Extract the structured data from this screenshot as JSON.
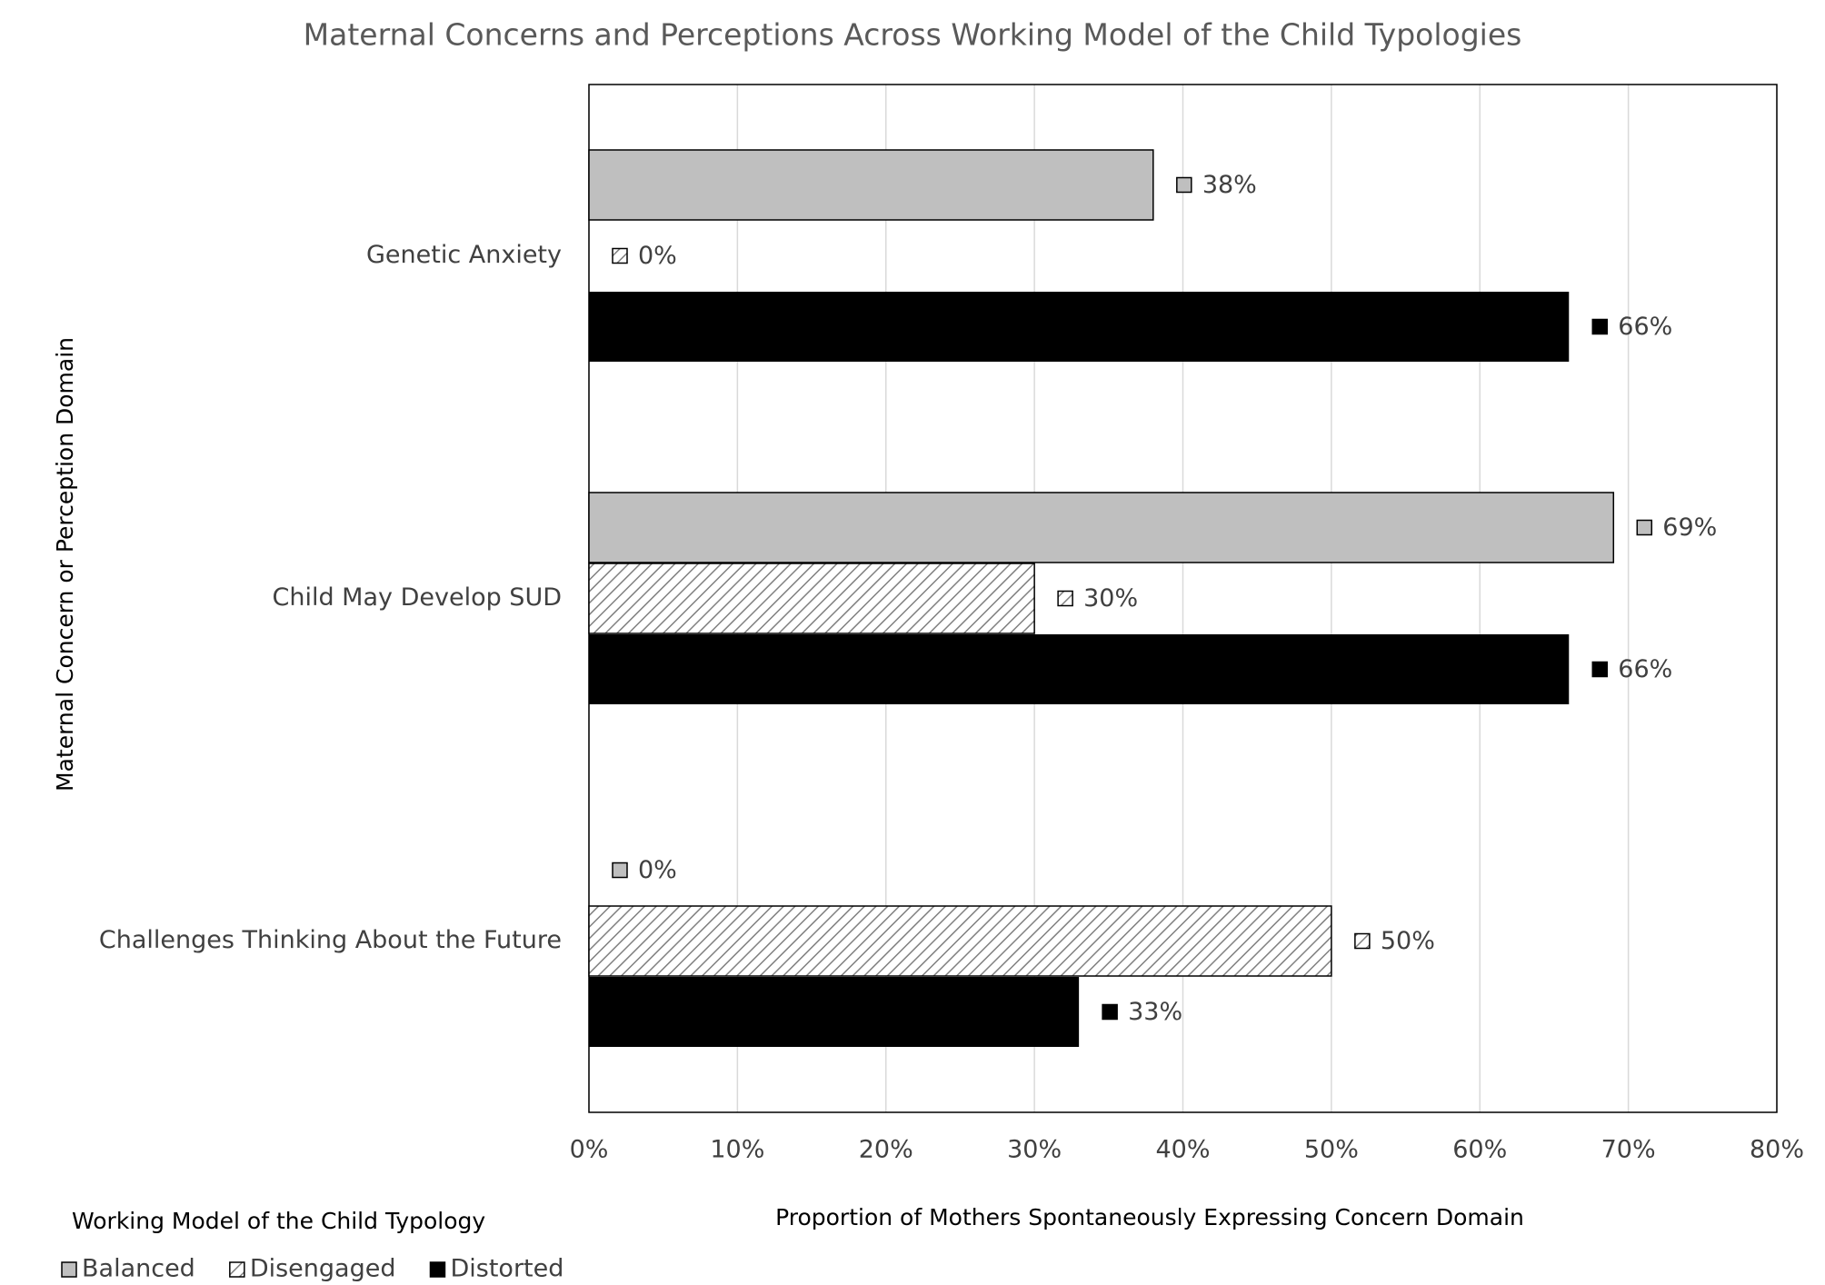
{
  "chart_data": {
    "type": "hbar",
    "title": "Maternal Concerns and Perceptions Across Working Model of the Child Typologies",
    "xlabel": "Proportion of Mothers Spontaneously Expressing Concern Domain",
    "ylabel": "Maternal Concern or Perception Domain",
    "legend_title": "Working Model of the Child Typology",
    "legend": "bottom-left",
    "categories": [
      "Genetic Anxiety",
      "Child May Develop SUD",
      "Challenges Thinking About the Future"
    ],
    "series": [
      {
        "name": "Balanced",
        "color": "#bfbfbf",
        "values": [
          38,
          69,
          0
        ],
        "value_labels": [
          "38%",
          "69%",
          "0%"
        ]
      },
      {
        "name": "Disengaged",
        "color": "#808080",
        "pattern": "diagonal-hatch",
        "values": [
          0,
          30,
          50
        ],
        "value_labels": [
          "0%",
          "30%",
          "50%"
        ]
      },
      {
        "name": "Distorted",
        "color": "#000000",
        "values": [
          66,
          66,
          33
        ],
        "value_labels": [
          "66%",
          "66%",
          "33%"
        ]
      }
    ],
    "xlim": [
      0,
      80
    ],
    "xticks": [
      {
        "value": 0,
        "label": "0%"
      },
      {
        "value": 10,
        "label": "10%"
      },
      {
        "value": 20,
        "label": "20%"
      },
      {
        "value": 30,
        "label": "30%"
      },
      {
        "value": 40,
        "label": "40%"
      },
      {
        "value": 50,
        "label": "50%"
      },
      {
        "value": 60,
        "label": "60%"
      },
      {
        "value": 70,
        "label": "70%"
      },
      {
        "value": 80,
        "label": "80%"
      }
    ],
    "grid": true
  }
}
